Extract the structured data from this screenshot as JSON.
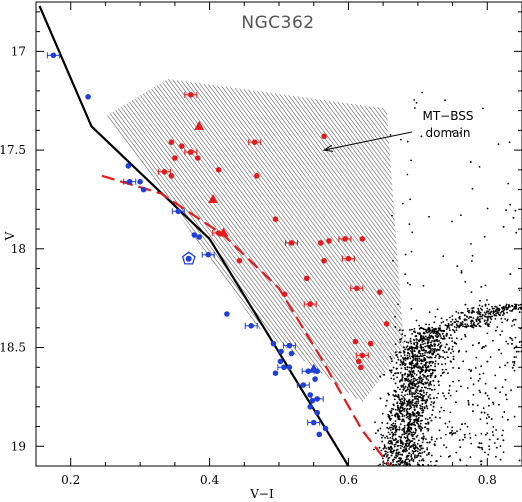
{
  "chart_data": {
    "type": "scatter",
    "title": "NGC362",
    "xlabel": "V−I",
    "ylabel": "V",
    "xlim": [
      0.15,
      0.85
    ],
    "ylim": [
      19.1,
      16.75
    ],
    "y_inverted": true,
    "x_ticks": [
      0.2,
      0.4,
      0.6,
      0.8
    ],
    "x_tick_labels": [
      "0.2",
      "0.4",
      "0.6",
      "0.8"
    ],
    "y_ticks": [
      17,
      17.5,
      18,
      18.5,
      19
    ],
    "y_tick_labels": [
      "17",
      "17.5",
      "18",
      "18.5",
      "19"
    ],
    "annotation": {
      "lines": [
        "MT−BSS",
        "domain"
      ],
      "arrow_to": [
        0.565,
        17.5
      ]
    },
    "colors": {
      "red": "#e41a1c",
      "blue": "#1f3fd8",
      "black": "#000000",
      "hatch": "#555555"
    },
    "mt_bss_domain_polygon": [
      [
        0.25,
        17.33
      ],
      [
        0.34,
        17.14
      ],
      [
        0.655,
        17.29
      ],
      [
        0.68,
        18.5
      ],
      [
        0.62,
        18.78
      ],
      [
        0.47,
        18.4
      ],
      [
        0.33,
        17.7
      ]
    ],
    "zams_line": [
      [
        0.155,
        16.77
      ],
      [
        0.23,
        17.38
      ],
      [
        0.4,
        17.95
      ],
      [
        0.6,
        19.1
      ]
    ],
    "red_dashed_line": [
      [
        0.245,
        17.63
      ],
      [
        0.33,
        17.72
      ],
      [
        0.42,
        17.93
      ],
      [
        0.5,
        18.2
      ],
      [
        0.56,
        18.55
      ],
      [
        0.62,
        18.92
      ],
      [
        0.66,
        19.1
      ]
    ],
    "series": [
      {
        "name": "",
        "color": "#e41a1c",
        "marker": "circle",
        "points": [
          [
            0.373,
            17.22
          ],
          [
            0.345,
            17.46
          ],
          [
            0.36,
            17.48
          ],
          [
            0.373,
            17.51
          ],
          [
            0.35,
            17.54
          ],
          [
            0.383,
            17.54
          ],
          [
            0.335,
            17.61
          ],
          [
            0.345,
            17.63
          ],
          [
            0.413,
            17.6
          ],
          [
            0.465,
            17.46
          ],
          [
            0.565,
            17.43
          ],
          [
            0.468,
            17.63
          ],
          [
            0.413,
            17.92
          ],
          [
            0.443,
            18.06
          ],
          [
            0.495,
            17.85
          ],
          [
            0.518,
            17.97
          ],
          [
            0.56,
            17.97
          ],
          [
            0.572,
            17.96
          ],
          [
            0.595,
            17.95
          ],
          [
            0.62,
            17.95
          ],
          [
            0.565,
            18.06
          ],
          [
            0.6,
            18.05
          ],
          [
            0.54,
            18.15
          ],
          [
            0.508,
            18.23
          ],
          [
            0.612,
            18.2
          ],
          [
            0.645,
            18.22
          ],
          [
            0.655,
            18.38
          ],
          [
            0.545,
            18.28
          ],
          [
            0.61,
            18.47
          ],
          [
            0.632,
            18.48
          ],
          [
            0.62,
            18.54
          ],
          [
            0.615,
            18.57
          ],
          [
            0.618,
            18.6
          ]
        ]
      },
      {
        "name": "",
        "color": "#e41a1c",
        "marker": "triangle",
        "points": [
          [
            0.385,
            17.38
          ],
          [
            0.405,
            17.75
          ],
          [
            0.42,
            17.92
          ]
        ]
      },
      {
        "name": "",
        "color": "#1f3fd8",
        "marker": "circle",
        "points": [
          [
            0.175,
            17.02
          ],
          [
            0.225,
            17.23
          ],
          [
            0.283,
            17.58
          ],
          [
            0.285,
            17.66
          ],
          [
            0.3,
            17.66
          ],
          [
            0.305,
            17.7
          ],
          [
            0.355,
            17.81
          ],
          [
            0.378,
            17.93
          ],
          [
            0.385,
            17.94
          ],
          [
            0.398,
            18.03
          ],
          [
            0.37,
            18.05
          ],
          [
            0.425,
            18.33
          ],
          [
            0.46,
            18.39
          ],
          [
            0.492,
            18.48
          ],
          [
            0.503,
            18.52
          ],
          [
            0.515,
            18.49
          ],
          [
            0.518,
            18.53
          ],
          [
            0.502,
            18.57
          ],
          [
            0.507,
            18.6
          ],
          [
            0.515,
            18.6
          ],
          [
            0.495,
            18.63
          ],
          [
            0.542,
            18.62
          ],
          [
            0.555,
            18.62
          ],
          [
            0.552,
            18.66
          ],
          [
            0.535,
            18.69
          ],
          [
            0.545,
            18.74
          ],
          [
            0.548,
            18.77
          ],
          [
            0.555,
            18.76
          ],
          [
            0.545,
            18.8
          ],
          [
            0.555,
            18.83
          ],
          [
            0.55,
            18.88
          ],
          [
            0.558,
            18.94
          ],
          [
            0.567,
            18.91
          ]
        ]
      },
      {
        "name": "",
        "color": "#1f3fd8",
        "marker": "triangle",
        "points": [
          [
            0.55,
            18.61
          ]
        ]
      },
      {
        "name": "",
        "color": "#1f3fd8",
        "marker": "pentagon",
        "points": [
          [
            0.37,
            18.05
          ]
        ]
      }
    ],
    "cmd_ridge_line": [
      [
        0.76,
        18.29
      ],
      [
        0.73,
        18.35
      ],
      [
        0.705,
        18.46
      ],
      [
        0.692,
        18.6
      ],
      [
        0.683,
        18.8
      ],
      [
        0.675,
        19.0
      ],
      [
        0.672,
        19.1
      ]
    ],
    "cmd_field_count": 2600
  }
}
